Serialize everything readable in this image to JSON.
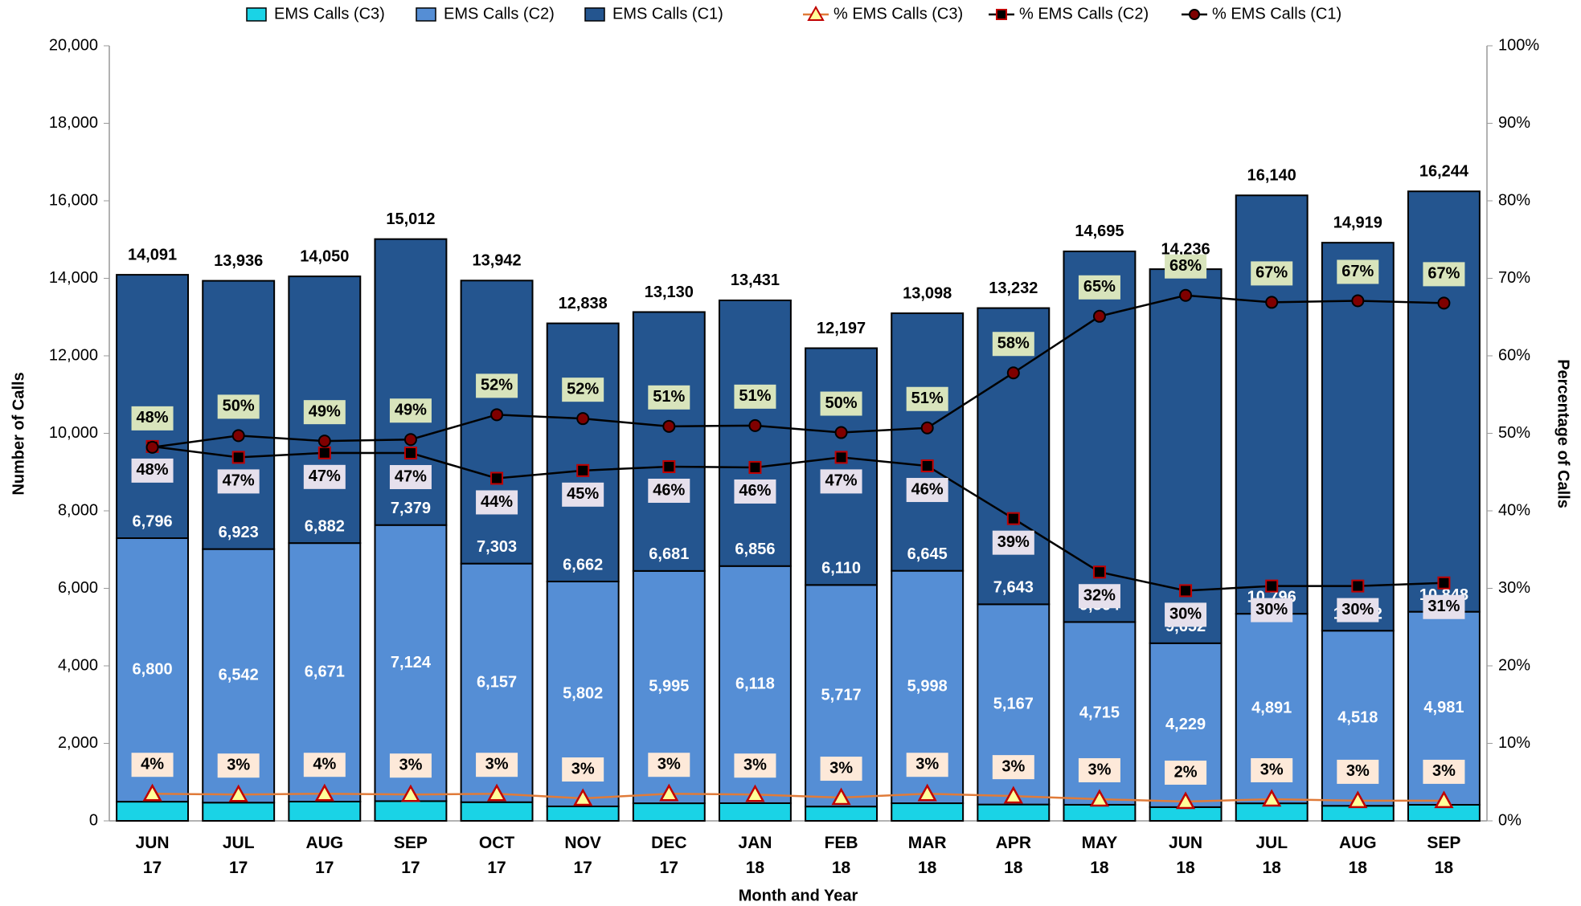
{
  "chart_data": {
    "type": "bar",
    "x_label": "Month and Year",
    "y_label": "Number of Calls",
    "y2_label": "Percentage of Calls",
    "categories": [
      "JUN 17",
      "JUL 17",
      "AUG 17",
      "SEP 17",
      "OCT 17",
      "NOV 17",
      "DEC 17",
      "JAN 18",
      "FEB 18",
      "MAR 18",
      "APR 18",
      "MAY 18",
      "JUN 18",
      "JUL 18",
      "AUG 18",
      "SEP 18"
    ],
    "ylim": [
      0,
      20000
    ],
    "yticks": [
      0,
      {
        "value": 2000,
        "label": "2,000"
      },
      {
        "value": 4000,
        "label": "4,000"
      },
      {
        "value": 6000,
        "label": "6,000"
      },
      {
        "value": 8000,
        "label": "8,000"
      },
      {
        "value": 10000,
        "label": "10,000"
      },
      {
        "value": 12000,
        "label": "12,000"
      },
      {
        "value": 14000,
        "label": "14,000"
      },
      {
        "value": 16000,
        "label": "16,000"
      },
      {
        "value": 18000,
        "label": "18,000"
      },
      {
        "value": 20000,
        "label": "20,000"
      }
    ],
    "y2lim": [
      0,
      100
    ],
    "y2ticks": [
      {
        "value": 0,
        "label": "0%"
      },
      {
        "value": 10,
        "label": "10%"
      },
      {
        "value": 20,
        "label": "20%"
      },
      {
        "value": 30,
        "label": "30%"
      },
      {
        "value": 40,
        "label": "40%"
      },
      {
        "value": 50,
        "label": "50%"
      },
      {
        "value": 60,
        "label": "60%"
      },
      {
        "value": 70,
        "label": "70%"
      },
      {
        "value": 80,
        "label": "80%"
      },
      {
        "value": 90,
        "label": "90%"
      },
      {
        "value": 100,
        "label": "100%"
      }
    ],
    "series": [
      {
        "name": "EMS Calls (C3)",
        "color": "#1ad3e6",
        "values": [
          495,
          471,
          497,
          509,
          482,
          374,
          454,
          457,
          370,
          455,
          422,
          416,
          355,
          453,
          389,
          415
        ]
      },
      {
        "name": "EMS Calls (C2)",
        "color": "#558ed5",
        "values": [
          6800,
          6542,
          6671,
          7124,
          6157,
          5802,
          5995,
          6118,
          5717,
          5998,
          5167,
          4715,
          4229,
          4891,
          4518,
          4981
        ],
        "value_labels": [
          "6,800",
          "6,542",
          "6,671",
          "7,124",
          "6,157",
          "5,802",
          "5,995",
          "6,118",
          "5,717",
          "5,998",
          "5,167",
          "4,715",
          "4,229",
          "4,891",
          "4,518",
          "4,981"
        ]
      },
      {
        "name": "EMS Calls (C1)",
        "color": "#24558f",
        "values": [
          6796,
          6923,
          6882,
          7379,
          7303,
          6662,
          6681,
          6856,
          6110,
          6645,
          7643,
          9564,
          9652,
          10796,
          10012,
          10848
        ],
        "value_labels": [
          "6,796",
          "6,923",
          "6,882",
          "7,379",
          "7,303",
          "6,662",
          "6,681",
          "6,856",
          "6,110",
          "6,645",
          "7,643",
          "9,564",
          "9,652",
          "10,796",
          "10,012",
          "10,848"
        ]
      },
      {
        "name": "% EMS Calls (C3)",
        "color": "#e07b39",
        "axis": "y2",
        "values": [
          3.5,
          3.4,
          3.5,
          3.4,
          3.5,
          2.9,
          3.5,
          3.4,
          3.0,
          3.5,
          3.2,
          2.8,
          2.49,
          2.8,
          2.6,
          2.6
        ],
        "value_labels": [
          "4%",
          "3%",
          "4%",
          "3%",
          "3%",
          "3%",
          "3%",
          "3%",
          "3%",
          "3%",
          "3%",
          "3%",
          "2%",
          "3%",
          "3%",
          "3%"
        ]
      },
      {
        "name": "% EMS Calls (C2)",
        "color": "#000000",
        "axis": "y2",
        "values": [
          48.3,
          46.9,
          47.48,
          47.46,
          44.2,
          45.2,
          45.7,
          45.6,
          46.9,
          45.8,
          39.0,
          32.1,
          29.7,
          30.3,
          30.3,
          30.7
        ],
        "value_labels": [
          "48%",
          "47%",
          "47%",
          "47%",
          "44%",
          "45%",
          "46%",
          "46%",
          "47%",
          "46%",
          "39%",
          "32%",
          "30%",
          "30%",
          "30%",
          "31%"
        ]
      },
      {
        "name": "% EMS Calls (C1)",
        "color": "#000000",
        "axis": "y2",
        "values": [
          48.2,
          49.7,
          49.0,
          49.2,
          52.4,
          51.9,
          50.9,
          51.0,
          50.1,
          50.7,
          57.8,
          65.1,
          67.8,
          66.9,
          67.1,
          66.8
        ],
        "value_labels": [
          "48%",
          "50%",
          "49%",
          "49%",
          "52%",
          "52%",
          "51%",
          "51%",
          "50%",
          "51%",
          "58%",
          "65%",
          "68%",
          "67%",
          "67%",
          "67%"
        ]
      }
    ],
    "totals": {
      "values": [
        14091,
        13936,
        14050,
        15012,
        13942,
        12838,
        13130,
        13431,
        12197,
        13098,
        13232,
        14695,
        14236,
        16140,
        14919,
        16244
      ],
      "value_labels": [
        "14,091",
        "13,936",
        "14,050",
        "15,012",
        "13,942",
        "12,838",
        "13,130",
        "13,431",
        "12,197",
        "13,098",
        "13,232",
        "14,695",
        "14,236",
        "16,140",
        "14,919",
        "16,244"
      ]
    }
  }
}
